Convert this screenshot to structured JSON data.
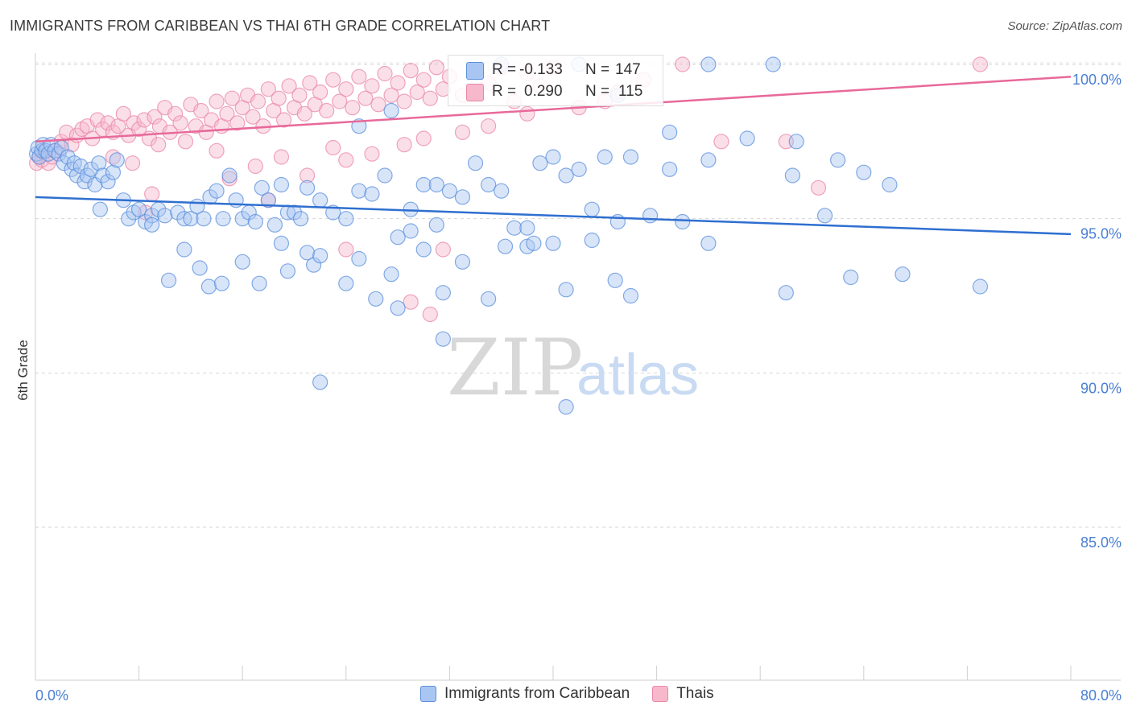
{
  "header": {
    "title": "IMMIGRANTS FROM CARIBBEAN VS THAI 6TH GRADE CORRELATION CHART",
    "source": "Source: ZipAtlas.com"
  },
  "watermark": {
    "zip": "ZIP",
    "atlas": "atlas"
  },
  "colors": {
    "blue_fill": "#a9c6f2",
    "blue_stroke": "#5b8fdc",
    "blue_line": "#2f6fd0",
    "pink_fill": "#f7b8cc",
    "pink_stroke": "#ea87a8",
    "pink_line": "#e8699a",
    "axis_text": "#4a7fd4"
  },
  "stats": {
    "blue": {
      "r_label": "R =",
      "r_value": "-0.133",
      "n_label": "N =",
      "n_value": "147"
    },
    "pink": {
      "r_label": "R =",
      "r_value": "0.290",
      "n_label": "N =",
      "n_value": "115"
    }
  },
  "chart_data": {
    "type": "scatter",
    "title": "IMMIGRANTS FROM CARIBBEAN VS THAI 6TH GRADE CORRELATION CHART",
    "xlabel": "",
    "ylabel": "6th Grade",
    "xlim": [
      0,
      80
    ],
    "ylim": [
      80.5,
      100.8
    ],
    "x_tick_labels": [
      "0.0%",
      "80.0%"
    ],
    "y_ticks": [
      85,
      90,
      95,
      100
    ],
    "y_tick_labels": [
      "85.0%",
      "90.0%",
      "95.0%",
      "100.0%"
    ],
    "grid": "horizontal dashed",
    "legend": "bottom-center",
    "series": [
      {
        "name": "Immigrants from Caribbean",
        "color": "#a9c6f2",
        "r": -0.133,
        "n": 147,
        "trend": [
          [
            0,
            95.7
          ],
          [
            80,
            94.5
          ]
        ],
        "points": [
          [
            0.1,
            97.1
          ],
          [
            0.2,
            97.3
          ],
          [
            0.3,
            97.0
          ],
          [
            0.5,
            97.2
          ],
          [
            0.6,
            97.4
          ],
          [
            0.8,
            97.2
          ],
          [
            1.0,
            97.1
          ],
          [
            1.2,
            97.4
          ],
          [
            1.5,
            97.2
          ],
          [
            1.8,
            97.1
          ],
          [
            2.0,
            97.3
          ],
          [
            2.2,
            96.8
          ],
          [
            2.5,
            97.0
          ],
          [
            2.8,
            96.6
          ],
          [
            3.0,
            96.8
          ],
          [
            3.2,
            96.4
          ],
          [
            3.5,
            96.7
          ],
          [
            3.8,
            96.2
          ],
          [
            4.0,
            96.4
          ],
          [
            4.3,
            96.6
          ],
          [
            4.6,
            96.1
          ],
          [
            4.9,
            96.8
          ],
          [
            5.2,
            96.4
          ],
          [
            5.6,
            96.2
          ],
          [
            6.0,
            96.5
          ],
          [
            6.3,
            96.9
          ],
          [
            6.8,
            95.6
          ],
          [
            7.2,
            95.0
          ],
          [
            7.6,
            95.2
          ],
          [
            8.0,
            95.3
          ],
          [
            8.5,
            94.9
          ],
          [
            9.0,
            95.1
          ],
          [
            9.5,
            95.3
          ],
          [
            10.0,
            95.1
          ],
          [
            11.0,
            95.2
          ],
          [
            11.5,
            95.0
          ],
          [
            12.0,
            95.0
          ],
          [
            12.5,
            95.4
          ],
          [
            13.0,
            95.0
          ],
          [
            13.5,
            95.7
          ],
          [
            14.0,
            95.9
          ],
          [
            14.5,
            95.0
          ],
          [
            15.0,
            96.4
          ],
          [
            15.5,
            95.6
          ],
          [
            16.0,
            95.0
          ],
          [
            16.5,
            95.2
          ],
          [
            17.0,
            94.9
          ],
          [
            17.5,
            96.0
          ],
          [
            18.0,
            95.6
          ],
          [
            18.5,
            94.8
          ],
          [
            19.0,
            96.1
          ],
          [
            19.5,
            95.2
          ],
          [
            20.0,
            95.2
          ],
          [
            20.5,
            95.0
          ],
          [
            21.0,
            96.0
          ],
          [
            22.0,
            95.6
          ],
          [
            23.0,
            95.2
          ],
          [
            24.0,
            95.0
          ],
          [
            25.0,
            95.9
          ],
          [
            26.0,
            95.8
          ],
          [
            27.0,
            96.4
          ],
          [
            28.0,
            94.4
          ],
          [
            29.0,
            94.6
          ],
          [
            30.0,
            96.1
          ],
          [
            31.0,
            94.8
          ],
          [
            32.0,
            95.9
          ],
          [
            33.0,
            95.7
          ],
          [
            34.0,
            96.8
          ],
          [
            35.0,
            96.1
          ],
          [
            36.0,
            95.9
          ],
          [
            37.0,
            94.7
          ],
          [
            38.0,
            94.1
          ],
          [
            39.0,
            96.8
          ],
          [
            40.0,
            97.0
          ],
          [
            41.0,
            96.4
          ],
          [
            42.0,
            96.6
          ],
          [
            43.0,
            95.3
          ],
          [
            44.0,
            97.0
          ],
          [
            45.0,
            94.9
          ],
          [
            46.0,
            97.0
          ],
          [
            47.5,
            95.1
          ],
          [
            49.0,
            96.6
          ],
          [
            50.0,
            94.9
          ],
          [
            52.0,
            96.9
          ],
          [
            5.0,
            95.3
          ],
          [
            9.0,
            94.8
          ],
          [
            10.3,
            93.0
          ],
          [
            11.5,
            94.0
          ],
          [
            12.7,
            93.4
          ],
          [
            13.4,
            92.8
          ],
          [
            14.4,
            92.9
          ],
          [
            16.0,
            93.6
          ],
          [
            17.3,
            92.9
          ],
          [
            19.0,
            94.2
          ],
          [
            19.5,
            93.3
          ],
          [
            21.0,
            93.9
          ],
          [
            21.5,
            93.5
          ],
          [
            22.0,
            93.8
          ],
          [
            24.0,
            92.9
          ],
          [
            25.0,
            93.7
          ],
          [
            26.3,
            92.4
          ],
          [
            27.5,
            93.2
          ],
          [
            28.0,
            92.1
          ],
          [
            30.0,
            94.0
          ],
          [
            31.5,
            92.6
          ],
          [
            33.0,
            93.6
          ],
          [
            35.0,
            92.4
          ],
          [
            36.3,
            94.1
          ],
          [
            38.5,
            94.2
          ],
          [
            44.8,
            93.0
          ],
          [
            46.0,
            92.5
          ],
          [
            52.0,
            94.2
          ],
          [
            58.0,
            92.6
          ],
          [
            63.0,
            93.1
          ],
          [
            31.5,
            91.1
          ],
          [
            29.0,
            95.3
          ],
          [
            41.0,
            92.7
          ],
          [
            22.0,
            89.7
          ],
          [
            41.0,
            88.9
          ],
          [
            27.5,
            98.5
          ],
          [
            36.0,
            100.0
          ],
          [
            42.0,
            100.0
          ],
          [
            52.0,
            100.0
          ],
          [
            57.0,
            100.0
          ],
          [
            45.0,
            99.0
          ],
          [
            25.0,
            98.0
          ],
          [
            49.0,
            97.8
          ],
          [
            55.0,
            97.6
          ],
          [
            58.8,
            97.5
          ],
          [
            62.0,
            96.9
          ],
          [
            64.0,
            96.5
          ],
          [
            66.0,
            96.1
          ],
          [
            58.5,
            96.4
          ],
          [
            61.0,
            95.1
          ],
          [
            67.0,
            93.2
          ],
          [
            73.0,
            92.8
          ],
          [
            31.0,
            96.1
          ],
          [
            38.0,
            94.7
          ],
          [
            40.0,
            94.2
          ],
          [
            43.0,
            94.3
          ]
        ]
      },
      {
        "name": "Thais",
        "color": "#f7b8cc",
        "r": 0.29,
        "n": 115,
        "trend": [
          [
            0,
            97.5
          ],
          [
            80,
            99.6
          ]
        ],
        "points": [
          [
            0.1,
            96.8
          ],
          [
            0.3,
            97.0
          ],
          [
            0.5,
            96.9
          ],
          [
            0.7,
            97.2
          ],
          [
            1.0,
            96.8
          ],
          [
            1.3,
            97.0
          ],
          [
            1.6,
            97.2
          ],
          [
            2.0,
            97.5
          ],
          [
            2.4,
            97.8
          ],
          [
            2.8,
            97.4
          ],
          [
            3.2,
            97.7
          ],
          [
            3.6,
            97.9
          ],
          [
            4.0,
            98.0
          ],
          [
            4.4,
            97.6
          ],
          [
            4.8,
            98.2
          ],
          [
            5.2,
            97.9
          ],
          [
            5.6,
            98.1
          ],
          [
            6.0,
            97.8
          ],
          [
            6.4,
            98.0
          ],
          [
            6.8,
            98.4
          ],
          [
            7.2,
            97.7
          ],
          [
            7.6,
            98.1
          ],
          [
            8.0,
            97.9
          ],
          [
            8.4,
            98.2
          ],
          [
            8.8,
            97.6
          ],
          [
            9.2,
            98.3
          ],
          [
            9.6,
            98.0
          ],
          [
            10.0,
            98.6
          ],
          [
            10.4,
            97.8
          ],
          [
            10.8,
            98.4
          ],
          [
            11.2,
            98.1
          ],
          [
            11.6,
            97.5
          ],
          [
            12.0,
            98.7
          ],
          [
            12.4,
            98.0
          ],
          [
            12.8,
            98.5
          ],
          [
            13.2,
            97.8
          ],
          [
            13.6,
            98.2
          ],
          [
            14.0,
            98.8
          ],
          [
            14.4,
            98.0
          ],
          [
            14.8,
            98.4
          ],
          [
            15.2,
            98.9
          ],
          [
            15.6,
            98.1
          ],
          [
            16.0,
            98.6
          ],
          [
            16.4,
            99.0
          ],
          [
            16.8,
            98.3
          ],
          [
            17.2,
            98.8
          ],
          [
            17.6,
            98.0
          ],
          [
            18.0,
            99.2
          ],
          [
            18.4,
            98.5
          ],
          [
            18.8,
            98.9
          ],
          [
            19.2,
            98.2
          ],
          [
            19.6,
            99.3
          ],
          [
            20.0,
            98.6
          ],
          [
            20.4,
            99.0
          ],
          [
            20.8,
            98.4
          ],
          [
            21.2,
            99.4
          ],
          [
            21.6,
            98.7
          ],
          [
            22.0,
            99.1
          ],
          [
            22.5,
            98.5
          ],
          [
            23.0,
            99.5
          ],
          [
            23.5,
            98.8
          ],
          [
            24.0,
            99.2
          ],
          [
            24.5,
            98.6
          ],
          [
            25.0,
            99.6
          ],
          [
            25.5,
            98.9
          ],
          [
            26.0,
            99.3
          ],
          [
            26.5,
            98.7
          ],
          [
            27.0,
            99.7
          ],
          [
            27.5,
            99.0
          ],
          [
            28.0,
            99.4
          ],
          [
            28.5,
            98.8
          ],
          [
            29.0,
            99.8
          ],
          [
            29.5,
            99.1
          ],
          [
            30.0,
            99.5
          ],
          [
            30.5,
            98.9
          ],
          [
            31.0,
            99.9
          ],
          [
            31.5,
            99.2
          ],
          [
            32.0,
            99.6
          ],
          [
            33.0,
            99.0
          ],
          [
            34.0,
            99.8
          ],
          [
            35.0,
            99.4
          ],
          [
            36.0,
            99.9
          ],
          [
            37.0,
            98.8
          ],
          [
            38.0,
            99.7
          ],
          [
            39.0,
            99.3
          ],
          [
            40.0,
            99.9
          ],
          [
            45.0,
            99.1
          ],
          [
            47.0,
            99.5
          ],
          [
            50.0,
            100.0
          ],
          [
            53.0,
            97.5
          ],
          [
            58.0,
            97.5
          ],
          [
            73.0,
            100.0
          ],
          [
            6.0,
            97.0
          ],
          [
            7.5,
            96.8
          ],
          [
            9.5,
            97.4
          ],
          [
            14.0,
            97.2
          ],
          [
            17.0,
            96.7
          ],
          [
            19.0,
            97.0
          ],
          [
            21.0,
            96.4
          ],
          [
            23.0,
            97.3
          ],
          [
            24.0,
            96.9
          ],
          [
            26.0,
            97.1
          ],
          [
            28.5,
            97.4
          ],
          [
            30.0,
            97.6
          ],
          [
            33.0,
            97.8
          ],
          [
            35.0,
            98.0
          ],
          [
            38.0,
            98.4
          ],
          [
            42.0,
            98.6
          ],
          [
            44.0,
            98.8
          ],
          [
            8.5,
            95.2
          ],
          [
            9.0,
            95.8
          ],
          [
            15.0,
            96.3
          ],
          [
            18.0,
            95.6
          ],
          [
            24.0,
            94.0
          ],
          [
            29.0,
            92.3
          ],
          [
            30.5,
            91.9
          ],
          [
            31.5,
            94.0
          ],
          [
            60.5,
            96.0
          ]
        ]
      }
    ]
  },
  "legend": {
    "items": [
      {
        "label": "Immigrants from Caribbean"
      },
      {
        "label": "Thais"
      }
    ]
  }
}
